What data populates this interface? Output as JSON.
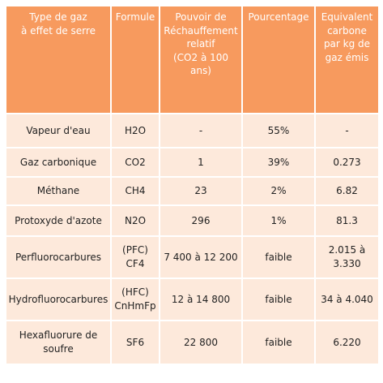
{
  "table": {
    "headers": [
      "Type de gaz\nà effet de serre",
      "Formule",
      "Pouvoir de\nRéchauffement\nrelatif\n(CO2 à 100\nans)",
      "Pourcentage",
      "Equivalent\ncarbone\npar kg de\ngaz émis"
    ],
    "rows": [
      [
        "Vapeur d'eau",
        "H2O",
        "-",
        "55%",
        "-"
      ],
      [
        "Gaz carbonique",
        "CO2",
        "1",
        "39%",
        "0.273"
      ],
      [
        "Méthane",
        "CH4",
        "23",
        "2%",
        "6.82"
      ],
      [
        "Protoxyde d'azote",
        "N2O",
        "296",
        "1%",
        "81.3"
      ],
      [
        "Perfluorocarbures",
        "(PFC)\nCF4",
        "7 400 à 12 200",
        "faible",
        "2.015 à\n3.330"
      ],
      [
        "Hydrofluorocarbures",
        "(HFC)\nCnHmFp",
        "12 à 14 800",
        "faible",
        "34 à 4.040"
      ],
      [
        "Hexafluorure de\nsoufre",
        "SF6",
        "22 800",
        "faible",
        "6.220"
      ]
    ]
  },
  "colors": {
    "header_bg": "#f79a5e",
    "row_bg": "#fde9db"
  }
}
